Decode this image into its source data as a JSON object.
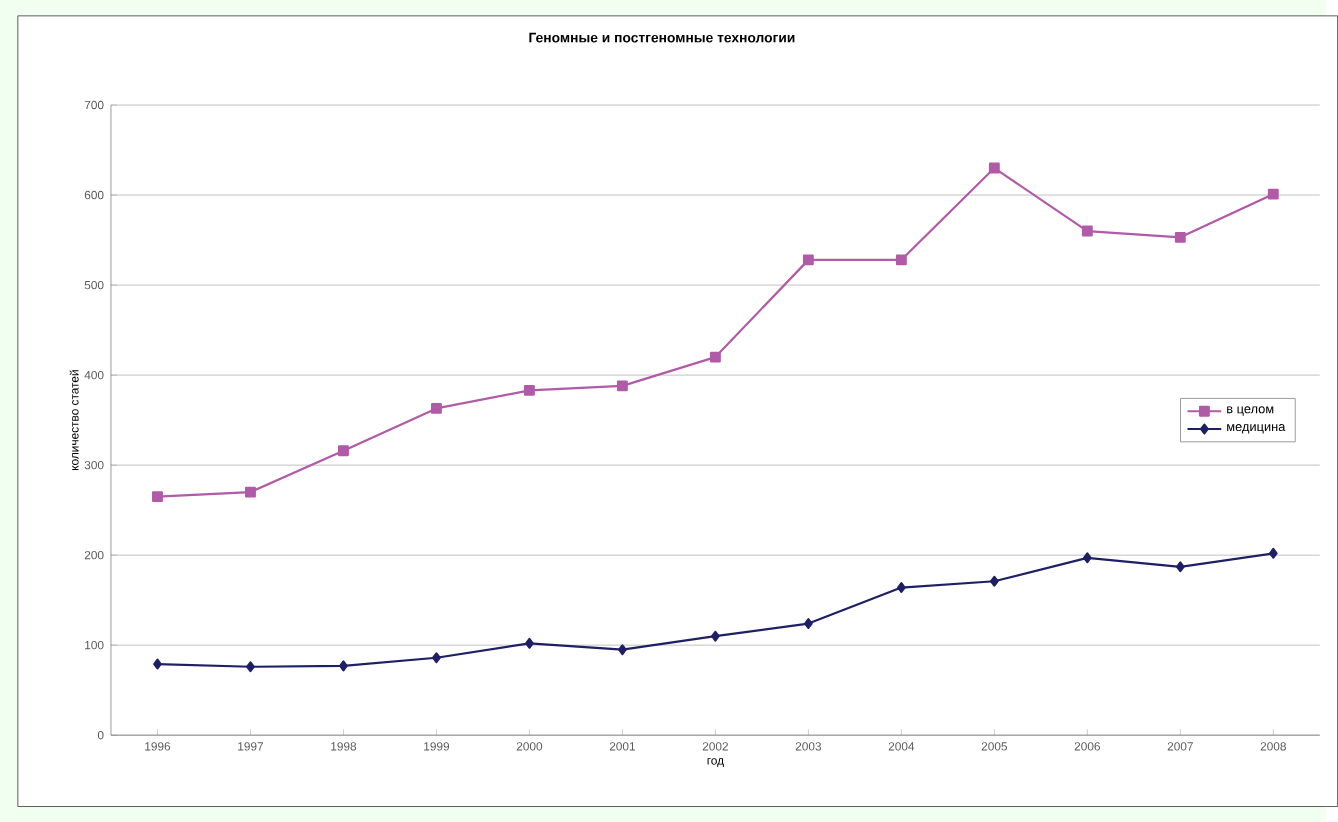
{
  "chart_data": {
    "type": "line",
    "title": "Геномные и постгеномные технологии",
    "xlabel": "год",
    "ylabel": "количество статей",
    "categories": [
      "1996",
      "1997",
      "1998",
      "1999",
      "2000",
      "2001",
      "2002",
      "2003",
      "2004",
      "2005",
      "2006",
      "2007",
      "2008"
    ],
    "series": [
      {
        "name": "в целом",
        "color": "#b05aa8",
        "marker": "square",
        "values": [
          265,
          270,
          316,
          363,
          383,
          388,
          420,
          528,
          528,
          630,
          560,
          553,
          601
        ]
      },
      {
        "name": "медицина",
        "color": "#1f1f66",
        "marker": "diamond",
        "values": [
          79,
          76,
          77,
          86,
          102,
          95,
          110,
          124,
          164,
          171,
          197,
          187,
          202
        ]
      }
    ],
    "ylim": [
      0,
      700
    ],
    "yticks": [
      0,
      100,
      200,
      300,
      400,
      500,
      600,
      700
    ],
    "grid": "y",
    "legend": "right",
    "line_style": "solid"
  }
}
